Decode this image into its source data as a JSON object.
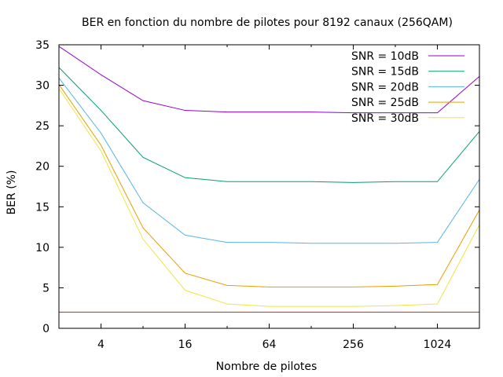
{
  "chart_data": {
    "type": "line",
    "title": "BER en fonction du nombre de pilotes pour 8192 canaux (256QAM)",
    "xlabel": "Nombre de pilotes",
    "ylabel": "BER (%)",
    "x_scale": "log2",
    "xlim": [
      2,
      2048
    ],
    "ylim": [
      0,
      35
    ],
    "x_ticks": [
      4,
      16,
      64,
      256,
      1024
    ],
    "x_tick_labels": [
      "4",
      "16",
      "64",
      "256",
      "1024"
    ],
    "y_ticks": [
      0,
      5,
      10,
      15,
      20,
      25,
      30,
      35
    ],
    "y_tick_labels": [
      "0",
      "5",
      "10",
      "15",
      "20",
      "25",
      "30",
      "35"
    ],
    "grid": false,
    "legend_position": "top-right",
    "x": [
      2,
      4,
      8,
      16,
      32,
      64,
      128,
      256,
      512,
      1024,
      2048
    ],
    "series": [
      {
        "name": "SNR = 10dB",
        "color": "#9400d3",
        "values": [
          34.8,
          31.3,
          28.1,
          26.9,
          26.7,
          26.7,
          26.7,
          26.6,
          26.6,
          26.6,
          31.1
        ]
      },
      {
        "name": "SNR = 15dB",
        "color": "#009e73",
        "values": [
          32.2,
          26.9,
          21.1,
          18.6,
          18.1,
          18.1,
          18.1,
          18.0,
          18.1,
          18.1,
          24.3
        ]
      },
      {
        "name": "SNR = 20dB",
        "color": "#56b4e9",
        "values": [
          30.9,
          24.1,
          15.5,
          11.5,
          10.6,
          10.6,
          10.5,
          10.5,
          10.5,
          10.6,
          18.4
        ]
      },
      {
        "name": "SNR = 25dB",
        "color": "#e69f00",
        "values": [
          30.1,
          22.6,
          12.4,
          6.8,
          5.3,
          5.1,
          5.1,
          5.1,
          5.2,
          5.4,
          14.6
        ]
      },
      {
        "name": "SNR = 30dB",
        "color": "#f0e442",
        "values": [
          29.6,
          21.9,
          11.0,
          4.7,
          3.0,
          2.7,
          2.7,
          2.7,
          2.8,
          3.0,
          12.8
        ]
      }
    ],
    "reference_line": {
      "y": 2,
      "color": "#e51e10"
    }
  }
}
